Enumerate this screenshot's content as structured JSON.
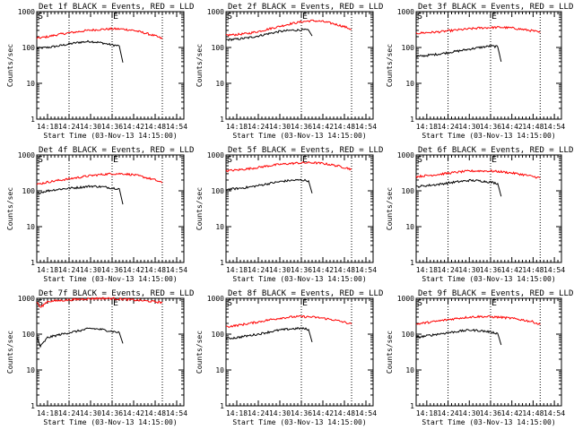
{
  "chart_data": [
    {
      "type": "line",
      "title": "Det 1f BLACK = Events, RED = LLD",
      "xlabel": "Start Time (03-Nov-13 14:15:00)",
      "ylabel": "Counts/sec",
      "yscale": "log",
      "ylim": [
        1,
        1000
      ],
      "yticks": [
        "1",
        "10",
        "100",
        "1000"
      ],
      "xlim": [
        "14:15",
        "14:56"
      ],
      "xticks": [
        "14:18",
        "14:24",
        "14:30",
        "14:36",
        "14:42",
        "14:48",
        "14:54"
      ],
      "markers": [
        {
          "label": "S",
          "x": "14:15"
        },
        {
          "label": "E",
          "x": "14:36"
        }
      ],
      "dotted_lines_x": [
        "14:24",
        "14:36",
        "14:50"
      ],
      "series": [
        {
          "color": "#000000",
          "x": [
            "14:15",
            "14:18",
            "14:21",
            "14:24",
            "14:27",
            "14:30",
            "14:33",
            "14:36",
            "14:38",
            "14:39"
          ],
          "y": [
            95,
            100,
            110,
            125,
            140,
            148,
            135,
            118,
            110,
            38
          ]
        },
        {
          "color": "#ff0000",
          "x": [
            "14:15",
            "14:18",
            "14:21",
            "14:24",
            "14:27",
            "14:30",
            "14:33",
            "14:36",
            "14:39",
            "14:42",
            "14:45",
            "14:48",
            "14:50"
          ],
          "y": [
            180,
            200,
            230,
            255,
            280,
            305,
            320,
            330,
            325,
            300,
            255,
            210,
            175
          ]
        }
      ]
    },
    {
      "type": "line",
      "title": "Det 2f BLACK = Events, RED = LLD",
      "xlabel": "Start Time (03-Nov-13 14:15:00)",
      "ylabel": "Counts/sec",
      "yscale": "log",
      "ylim": [
        1,
        1000
      ],
      "yticks": [
        "1",
        "10",
        "100",
        "1000"
      ],
      "xlim": [
        "14:15",
        "14:56"
      ],
      "xticks": [
        "14:18",
        "14:24",
        "14:30",
        "14:36",
        "14:42",
        "14:48",
        "14:54"
      ],
      "markers": [
        {
          "label": "S",
          "x": "14:15"
        },
        {
          "label": "E",
          "x": "14:36"
        }
      ],
      "dotted_lines_x": [
        "14:36",
        "14:50"
      ],
      "series": [
        {
          "color": "#000000",
          "x": [
            "14:15",
            "14:18",
            "14:21",
            "14:24",
            "14:27",
            "14:30",
            "14:33",
            "14:36",
            "14:38",
            "14:39"
          ],
          "y": [
            165,
            170,
            185,
            210,
            245,
            280,
            300,
            310,
            305,
            210
          ]
        },
        {
          "color": "#ff0000",
          "x": [
            "14:15",
            "14:18",
            "14:21",
            "14:24",
            "14:27",
            "14:30",
            "14:33",
            "14:36",
            "14:39",
            "14:42",
            "14:45",
            "14:48",
            "14:50"
          ],
          "y": [
            220,
            230,
            245,
            280,
            330,
            390,
            460,
            520,
            560,
            530,
            460,
            380,
            320
          ]
        }
      ]
    },
    {
      "type": "line",
      "title": "Det 3f BLACK = Events, RED = LLD",
      "xlabel": "Start Time (03-Nov-13 14:15:00)",
      "ylabel": "Counts/sec",
      "yscale": "log",
      "ylim": [
        1,
        1000
      ],
      "yticks": [
        "1",
        "10",
        "100",
        "1000"
      ],
      "xlim": [
        "14:15",
        "14:56"
      ],
      "xticks": [
        "14:18",
        "14:24",
        "14:30",
        "14:36",
        "14:42",
        "14:48",
        "14:54"
      ],
      "markers": [
        {
          "label": "S",
          "x": "14:15"
        },
        {
          "label": "E",
          "x": "14:36"
        }
      ],
      "dotted_lines_x": [
        "14:24",
        "14:36",
        "14:50"
      ],
      "series": [
        {
          "color": "#000000",
          "x": [
            "14:15",
            "14:18",
            "14:21",
            "14:24",
            "14:27",
            "14:30",
            "14:33",
            "14:36",
            "14:38",
            "14:39"
          ],
          "y": [
            55,
            60,
            65,
            72,
            80,
            90,
            100,
            110,
            105,
            40
          ]
        },
        {
          "color": "#ff0000",
          "x": [
            "14:15",
            "14:18",
            "14:21",
            "14:24",
            "14:27",
            "14:30",
            "14:33",
            "14:36",
            "14:39",
            "14:42",
            "14:45",
            "14:48",
            "14:50"
          ],
          "y": [
            250,
            260,
            270,
            290,
            310,
            330,
            350,
            360,
            365,
            350,
            320,
            290,
            260
          ]
        }
      ]
    },
    {
      "type": "line",
      "title": "Det 4f BLACK = Events, RED = LLD",
      "xlabel": "Start Time (03-Nov-13 14:15:00)",
      "ylabel": "Counts/sec",
      "yscale": "log",
      "ylim": [
        1,
        1000
      ],
      "yticks": [
        "1",
        "10",
        "100",
        "1000"
      ],
      "xlim": [
        "14:15",
        "14:56"
      ],
      "xticks": [
        "14:18",
        "14:24",
        "14:30",
        "14:36",
        "14:42",
        "14:48",
        "14:54"
      ],
      "markers": [
        {
          "label": "S",
          "x": "14:15"
        },
        {
          "label": "E",
          "x": "14:36"
        }
      ],
      "dotted_lines_x": [
        "14:24",
        "14:36",
        "14:50"
      ],
      "series": [
        {
          "color": "#000000",
          "x": [
            "14:15",
            "14:18",
            "14:21",
            "14:24",
            "14:27",
            "14:30",
            "14:33",
            "14:36",
            "14:38",
            "14:39"
          ],
          "y": [
            85,
            100,
            110,
            118,
            125,
            135,
            130,
            120,
            115,
            42
          ]
        },
        {
          "color": "#ff0000",
          "x": [
            "14:15",
            "14:18",
            "14:21",
            "14:24",
            "14:27",
            "14:30",
            "14:33",
            "14:36",
            "14:39",
            "14:42",
            "14:45",
            "14:48",
            "14:50"
          ],
          "y": [
            150,
            175,
            195,
            215,
            240,
            265,
            285,
            300,
            300,
            280,
            240,
            200,
            165
          ]
        }
      ]
    },
    {
      "type": "line",
      "title": "Det 5f BLACK = Events, RED = LLD",
      "xlabel": "Start Time (03-Nov-13 14:15:00)",
      "ylabel": "Counts/sec",
      "yscale": "log",
      "ylim": [
        1,
        1000
      ],
      "yticks": [
        "1",
        "10",
        "100",
        "1000"
      ],
      "xlim": [
        "14:15",
        "14:56"
      ],
      "xticks": [
        "14:18",
        "14:24",
        "14:30",
        "14:36",
        "14:42",
        "14:48",
        "14:54"
      ],
      "markers": [
        {
          "label": "S",
          "x": "14:15"
        },
        {
          "label": "E",
          "x": "14:36"
        }
      ],
      "dotted_lines_x": [
        "14:36",
        "14:50"
      ],
      "series": [
        {
          "color": "#000000",
          "x": [
            "14:15",
            "14:18",
            "14:21",
            "14:24",
            "14:27",
            "14:30",
            "14:33",
            "14:36",
            "14:38",
            "14:39"
          ],
          "y": [
            110,
            115,
            125,
            140,
            160,
            180,
            195,
            200,
            190,
            85
          ]
        },
        {
          "color": "#ff0000",
          "x": [
            "14:15",
            "14:18",
            "14:21",
            "14:24",
            "14:27",
            "14:30",
            "14:33",
            "14:36",
            "14:39",
            "14:42",
            "14:45",
            "14:48",
            "14:50"
          ],
          "y": [
            360,
            380,
            410,
            450,
            500,
            545,
            580,
            600,
            610,
            580,
            520,
            450,
            400
          ]
        }
      ]
    },
    {
      "type": "line",
      "title": "Det 6f BLACK = Events, RED = LLD",
      "xlabel": "Start Time (03-Nov-13 14:15:00)",
      "ylabel": "Counts/sec",
      "yscale": "log",
      "ylim": [
        1,
        1000
      ],
      "yticks": [
        "1",
        "10",
        "100",
        "1000"
      ],
      "xlim": [
        "14:15",
        "14:56"
      ],
      "xticks": [
        "14:18",
        "14:24",
        "14:30",
        "14:36",
        "14:42",
        "14:48",
        "14:54"
      ],
      "markers": [
        {
          "label": "S",
          "x": "14:15"
        },
        {
          "label": "E",
          "x": "14:36"
        }
      ],
      "dotted_lines_x": [
        "14:24",
        "14:36",
        "14:50"
      ],
      "series": [
        {
          "color": "#000000",
          "x": [
            "14:15",
            "14:18",
            "14:21",
            "14:24",
            "14:27",
            "14:30",
            "14:33",
            "14:36",
            "14:38",
            "14:39"
          ],
          "y": [
            130,
            140,
            150,
            165,
            180,
            195,
            190,
            175,
            160,
            70
          ]
        },
        {
          "color": "#ff0000",
          "x": [
            "14:15",
            "14:18",
            "14:21",
            "14:24",
            "14:27",
            "14:30",
            "14:33",
            "14:36",
            "14:39",
            "14:42",
            "14:45",
            "14:48",
            "14:50"
          ],
          "y": [
            250,
            265,
            285,
            310,
            335,
            355,
            360,
            355,
            340,
            315,
            285,
            250,
            230
          ]
        }
      ]
    },
    {
      "type": "line",
      "title": "Det 7f BLACK = Events, RED = LLD",
      "xlabel": "Start Time (03-Nov-13 14:15:00)",
      "ylabel": "Counts/sec",
      "yscale": "log",
      "ylim": [
        1,
        1000
      ],
      "yticks": [
        "1",
        "10",
        "100",
        "1000"
      ],
      "xlim": [
        "14:15",
        "14:56"
      ],
      "xticks": [
        "14:18",
        "14:24",
        "14:30",
        "14:36",
        "14:42",
        "14:48",
        "14:54"
      ],
      "markers": [
        {
          "label": "S",
          "x": "14:15"
        },
        {
          "label": "E",
          "x": "14:36"
        }
      ],
      "dotted_lines_x": [
        "14:24",
        "14:36",
        "14:50"
      ],
      "series": [
        {
          "color": "#000000",
          "x": [
            "14:15",
            "14:16",
            "14:18",
            "14:21",
            "14:24",
            "14:27",
            "14:30",
            "14:33",
            "14:36",
            "14:38",
            "14:39"
          ],
          "y": [
            85,
            45,
            80,
            95,
            110,
            125,
            145,
            135,
            120,
            110,
            55
          ]
        },
        {
          "color": "#ff0000",
          "x": [
            "14:15",
            "14:16",
            "14:18",
            "14:21",
            "14:24",
            "14:27",
            "14:30",
            "14:33",
            "14:36",
            "14:39",
            "14:42",
            "14:45",
            "14:48",
            "14:50"
          ],
          "y": [
            800,
            550,
            820,
            860,
            900,
            950,
            980,
            1000,
            990,
            950,
            900,
            850,
            800,
            760
          ]
        }
      ]
    },
    {
      "type": "line",
      "title": "Det 8f BLACK = Events, RED = LLD",
      "xlabel": "Start Time (03-Nov-13 14:15:00)",
      "ylabel": "Counts/sec",
      "yscale": "log",
      "ylim": [
        1,
        1000
      ],
      "yticks": [
        "1",
        "10",
        "100",
        "1000"
      ],
      "xlim": [
        "14:15",
        "14:56"
      ],
      "xticks": [
        "14:18",
        "14:24",
        "14:30",
        "14:36",
        "14:42",
        "14:48",
        "14:54"
      ],
      "markers": [
        {
          "label": "S",
          "x": "14:15"
        },
        {
          "label": "E",
          "x": "14:36"
        }
      ],
      "dotted_lines_x": [
        "14:36",
        "14:50"
      ],
      "series": [
        {
          "color": "#000000",
          "x": [
            "14:15",
            "14:18",
            "14:21",
            "14:24",
            "14:27",
            "14:30",
            "14:33",
            "14:36",
            "14:38",
            "14:39"
          ],
          "y": [
            75,
            80,
            90,
            100,
            115,
            130,
            140,
            145,
            135,
            60
          ]
        },
        {
          "color": "#ff0000",
          "x": [
            "14:15",
            "14:18",
            "14:21",
            "14:24",
            "14:27",
            "14:30",
            "14:33",
            "14:36",
            "14:39",
            "14:42",
            "14:45",
            "14:48",
            "14:50"
          ],
          "y": [
            160,
            175,
            195,
            220,
            250,
            280,
            300,
            310,
            300,
            280,
            250,
            215,
            190
          ]
        }
      ]
    },
    {
      "type": "line",
      "title": "Det 9f BLACK = Events, RED = LLD",
      "xlabel": "Start Time (03-Nov-13 14:15:00)",
      "ylabel": "Counts/sec",
      "yscale": "log",
      "ylim": [
        1,
        1000
      ],
      "yticks": [
        "1",
        "10",
        "100",
        "1000"
      ],
      "xlim": [
        "14:15",
        "14:56"
      ],
      "xticks": [
        "14:18",
        "14:24",
        "14:30",
        "14:36",
        "14:42",
        "14:48",
        "14:54"
      ],
      "markers": [
        {
          "label": "S",
          "x": "14:15"
        },
        {
          "label": "E",
          "x": "14:36"
        }
      ],
      "dotted_lines_x": [
        "14:24",
        "14:36",
        "14:50"
      ],
      "series": [
        {
          "color": "#000000",
          "x": [
            "14:15",
            "14:18",
            "14:21",
            "14:24",
            "14:27",
            "14:30",
            "14:33",
            "14:36",
            "14:38",
            "14:39"
          ],
          "y": [
            80,
            90,
            100,
            110,
            120,
            130,
            125,
            115,
            105,
            50
          ]
        },
        {
          "color": "#ff0000",
          "x": [
            "14:15",
            "14:18",
            "14:21",
            "14:24",
            "14:27",
            "14:30",
            "14:33",
            "14:36",
            "14:39",
            "14:42",
            "14:45",
            "14:48",
            "14:50"
          ],
          "y": [
            190,
            210,
            230,
            255,
            280,
            300,
            310,
            305,
            295,
            275,
            250,
            220,
            185
          ]
        }
      ]
    }
  ]
}
